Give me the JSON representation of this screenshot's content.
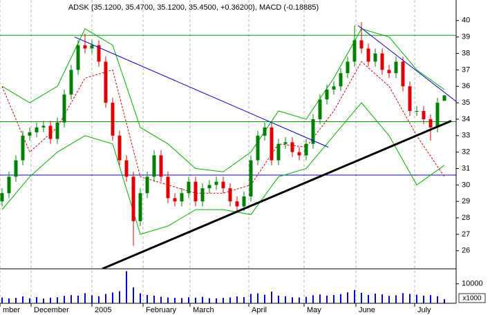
{
  "chart_data": {
    "type": "candlestick",
    "title": "ADSK (35.1200, 35.4700, 35.1200, 35.4500, +0.36200), MACD (-0.18885)",
    "x": [
      0,
      1,
      2,
      3,
      4,
      5,
      6,
      7,
      8,
      9,
      10,
      11,
      12,
      13,
      14,
      15,
      16,
      17,
      18,
      19,
      20,
      21,
      22,
      23,
      24,
      25,
      26,
      27,
      28,
      29,
      30,
      31,
      32,
      33,
      34,
      35,
      36,
      37,
      38,
      39,
      40,
      41,
      42,
      43,
      44,
      45,
      46,
      47,
      48,
      49,
      50,
      51,
      52,
      53,
      54,
      55,
      56,
      57,
      58,
      59,
      60,
      61,
      62,
      63,
      64
    ],
    "open": [
      29.0,
      29.5,
      30.5,
      31.5,
      33.0,
      33.2,
      33.5,
      33.6,
      32.8,
      33.8,
      35.5,
      37.0,
      38.5,
      38.3,
      38.5,
      37.5,
      35.0,
      33.0,
      31.5,
      30.5,
      27.8,
      29.5,
      30.5,
      31.8,
      30.5,
      29.2,
      29.0,
      29.5,
      30.2,
      29.0,
      29.8,
      30.0,
      30.2,
      29.8,
      29.0,
      28.7,
      29.3,
      31.5,
      33.0,
      33.5,
      31.5,
      32.5,
      32.6,
      32.0,
      31.8,
      32.5,
      34.0,
      35.2,
      35.8,
      36.0,
      36.8,
      37.5,
      38.8,
      38.3,
      37.5,
      38.0,
      37.0,
      36.8,
      37.5,
      36.0,
      34.5,
      34.5,
      34.0,
      33.5,
      35.12
    ],
    "high": [
      29.8,
      30.8,
      31.8,
      33.3,
      33.5,
      33.8,
      33.9,
      33.9,
      34.1,
      35.8,
      37.3,
      38.8,
      39.2,
      38.8,
      38.8,
      37.8,
      35.3,
      33.3,
      31.8,
      30.8,
      29.8,
      30.8,
      32.1,
      32.1,
      30.8,
      29.5,
      29.8,
      30.5,
      30.5,
      30.1,
      30.3,
      30.5,
      30.5,
      30.1,
      29.3,
      29.6,
      31.8,
      33.3,
      33.8,
      33.8,
      32.8,
      32.9,
      32.9,
      32.3,
      32.8,
      34.3,
      35.5,
      36.1,
      36.3,
      37.1,
      37.8,
      39.7,
      39.9,
      38.6,
      38.3,
      38.3,
      37.3,
      37.8,
      37.8,
      36.3,
      34.8,
      34.8,
      34.3,
      35.3,
      35.47
    ],
    "low": [
      28.7,
      29.2,
      30.2,
      31.2,
      32.7,
      32.9,
      33.2,
      32.5,
      32.5,
      33.5,
      35.2,
      36.7,
      38.0,
      38.0,
      37.2,
      34.7,
      32.7,
      31.2,
      30.2,
      26.3,
      27.5,
      29.2,
      30.2,
      30.2,
      28.9,
      28.7,
      28.7,
      29.2,
      28.7,
      28.7,
      29.5,
      29.7,
      29.5,
      28.7,
      28.4,
      28.4,
      29.0,
      31.2,
      32.7,
      31.2,
      31.2,
      32.2,
      31.7,
      31.5,
      31.5,
      32.2,
      33.7,
      34.9,
      35.5,
      35.7,
      36.5,
      37.2,
      38.0,
      37.2,
      37.2,
      36.7,
      36.5,
      36.5,
      35.7,
      34.2,
      34.2,
      33.7,
      32.7,
      33.2,
      35.12
    ],
    "close": [
      29.5,
      30.5,
      31.5,
      33.0,
      33.2,
      33.5,
      33.6,
      32.8,
      33.8,
      35.5,
      37.0,
      38.5,
      38.3,
      38.5,
      37.5,
      35.0,
      33.0,
      31.5,
      30.5,
      27.8,
      29.5,
      30.5,
      31.8,
      30.5,
      29.2,
      29.0,
      29.5,
      30.2,
      29.0,
      29.8,
      30.0,
      30.2,
      29.8,
      29.0,
      28.7,
      29.3,
      31.5,
      33.0,
      33.5,
      31.5,
      32.5,
      32.6,
      32.0,
      31.8,
      32.5,
      34.0,
      35.2,
      35.8,
      36.0,
      36.8,
      37.5,
      38.8,
      38.3,
      37.5,
      38.0,
      37.0,
      36.8,
      37.5,
      36.0,
      34.5,
      34.5,
      34.0,
      33.5,
      35.0,
      35.45
    ],
    "up_color": "#008000",
    "down_color": "#e00000",
    "xlim": [
      -0.3,
      65.7
    ],
    "xticks": [
      {
        "value": -0.3,
        "label": "mber"
      },
      {
        "value": 4.2,
        "label": "December"
      },
      {
        "value": 13.0,
        "label": "2005"
      },
      {
        "value": 20.4,
        "label": "February"
      },
      {
        "value": 27.2,
        "label": "March"
      },
      {
        "value": 35.7,
        "label": "April"
      },
      {
        "value": 43.7,
        "label": "May"
      },
      {
        "value": 51.2,
        "label": "June"
      },
      {
        "value": 59.7,
        "label": "July"
      }
    ],
    "ylim": [
      24.9,
      41.25
    ],
    "yticks": [
      26,
      27,
      28,
      29,
      30,
      31,
      32,
      33,
      34,
      35,
      36,
      37,
      38,
      39,
      40
    ],
    "grid": true,
    "overlays": [
      {
        "color": "#00b000",
        "dash": false,
        "x": [
          0,
          4,
          8,
          12,
          16,
          20,
          24,
          28,
          32,
          36,
          40,
          44,
          48,
          52,
          56,
          60,
          64
        ],
        "values": [
          36.0,
          35.0,
          36.0,
          39.5,
          38.5,
          33.5,
          32.5,
          31.0,
          30.8,
          32.0,
          34.5,
          34.0,
          36.5,
          39.5,
          39.0,
          37.0,
          35.8
        ]
      },
      {
        "color": "#00b000",
        "dash": false,
        "x": [
          0,
          4,
          8,
          12,
          16,
          20,
          24,
          28,
          32,
          36,
          40,
          44,
          48,
          52,
          56,
          60,
          64
        ],
        "values": [
          28.5,
          30.5,
          32.0,
          33.0,
          32.5,
          27.0,
          27.5,
          28.5,
          28.5,
          28.2,
          30.5,
          31.0,
          33.0,
          35.0,
          33.0,
          30.0,
          31.2
        ]
      },
      {
        "color": "#e00000",
        "dash": true,
        "x": [
          0,
          4,
          8,
          12,
          16,
          20,
          24,
          28,
          32,
          36,
          40,
          44,
          48,
          52,
          56,
          60,
          64
        ],
        "values": [
          36.0,
          32.0,
          33.5,
          36.5,
          37.0,
          30.5,
          30.0,
          29.5,
          29.5,
          30.0,
          32.5,
          32.3,
          34.5,
          37.5,
          36.0,
          33.0,
          30.5
        ]
      }
    ],
    "trendlines": [
      {
        "color": "#0000cc",
        "width": 1,
        "x": [
          10.5,
          47.2
        ],
        "values": [
          39.0,
          32.3
        ]
      },
      {
        "color": "#0000cc",
        "width": 1,
        "x": [
          51.5,
          65.8
        ],
        "values": [
          39.7,
          35.05
        ]
      },
      {
        "color": "#000000",
        "width": 3,
        "x": [
          14.5,
          65.0
        ],
        "values": [
          24.9,
          33.9
        ]
      }
    ],
    "hlines": [
      {
        "color": "#00a000",
        "value": 39.1
      },
      {
        "color": "#00a000",
        "value": 33.85
      },
      {
        "color": "#0000cc",
        "value": 30.6
      }
    ],
    "volume": {
      "color": "#0000cc",
      "values": [
        3000,
        2500,
        2800,
        3500,
        2600,
        3200,
        2400,
        2900,
        3100,
        3800,
        4200,
        3900,
        5200,
        4100,
        3600,
        4800,
        5500,
        6200,
        16500,
        8200,
        5100,
        4300,
        3900,
        3400,
        3000,
        2800,
        2700,
        3100,
        2900,
        3300,
        2600,
        2500,
        2800,
        3000,
        3500,
        3200,
        4800,
        5100,
        4400,
        6000,
        3900,
        3600,
        3100,
        3000,
        3300,
        4100,
        4500,
        3900,
        4200,
        4700,
        5600,
        6800,
        5400,
        4300,
        5000,
        4600,
        3800,
        4100,
        5200,
        4800,
        4400,
        3900,
        4200,
        3600,
        2100
      ],
      "ylim": [
        0,
        17000
      ],
      "yticks": [
        10000
      ],
      "unit": "x1000"
    }
  }
}
